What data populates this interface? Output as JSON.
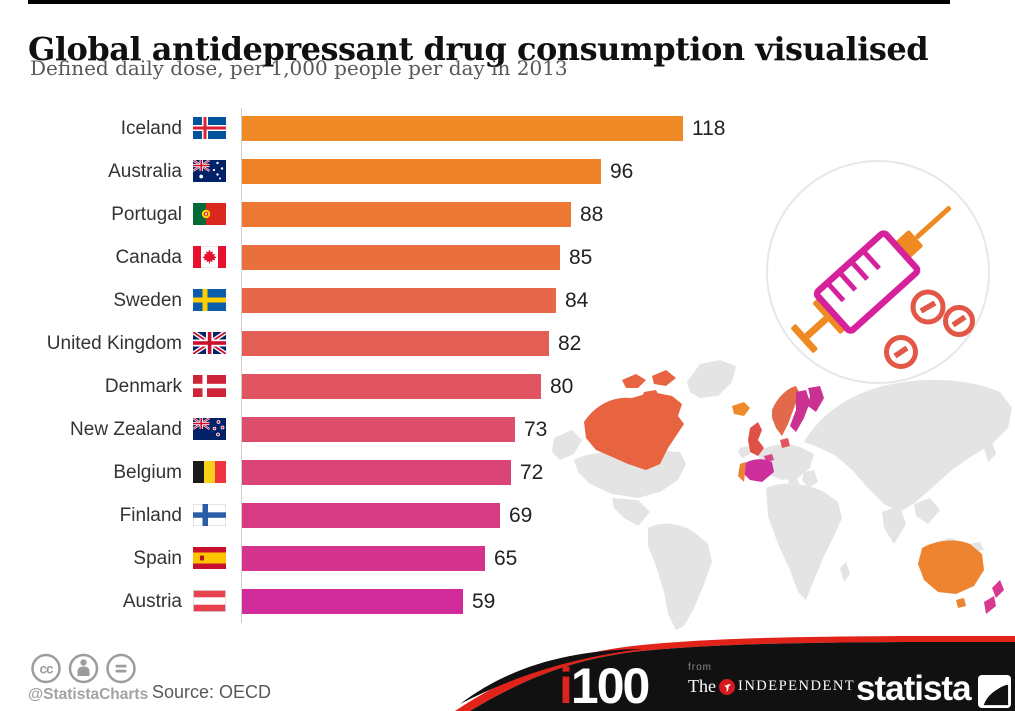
{
  "header": {
    "title": "Global antidepressant drug consumption visualised",
    "subtitle": "Defined daily dose, per 1,000 people per day in 2013"
  },
  "chart_data": {
    "type": "bar",
    "orientation": "horizontal",
    "title": "Global antidepressant drug consumption visualised",
    "subtitle": "Defined daily dose, per 1,000 people per day in 2013",
    "year": "2013",
    "unit": "defined daily dose per 1,000 people per day",
    "categories": [
      "Iceland",
      "Australia",
      "Portugal",
      "Canada",
      "Sweden",
      "United Kingdom",
      "Denmark",
      "New Zealand",
      "Belgium",
      "Finland",
      "Spain",
      "Austria"
    ],
    "values": [
      118,
      96,
      88,
      85,
      84,
      82,
      80,
      73,
      72,
      69,
      65,
      59
    ],
    "bar_colors": [
      "#F08A26",
      "#EF8229",
      "#ED7834",
      "#EA6F3F",
      "#E7674A",
      "#E35E55",
      "#E05560",
      "#DD4D6C",
      "#DA4477",
      "#D73C82",
      "#D4338E",
      "#D12B99"
    ],
    "flags": [
      "is",
      "au",
      "pt",
      "ca",
      "se",
      "gb",
      "dk",
      "nz",
      "be",
      "fi",
      "es",
      "at"
    ],
    "xlim": [
      0,
      130
    ],
    "grid": false,
    "legend": false
  },
  "map": {
    "base_color": "#E4E4E4",
    "colors": {
      "canada": "#E86340",
      "iceland": "#EE8A2A",
      "uk": "#DF5147",
      "norway": "#E26A4B",
      "sweden": "#CB3093",
      "denmark": "#E05560",
      "belgium": "#D8438A",
      "spain": "#CC2F9B",
      "portugal": "#EE7F34",
      "australia": "#EE8430",
      "new_zealand": "#D8388F"
    }
  },
  "illustration": {
    "name": "syringe-and-pills",
    "circle_border": "#E7E7E7",
    "barrel_color": "#D6219C",
    "metal_color": "#EE8A21",
    "pill_color": "#E25745"
  },
  "footer": {
    "handle": "@StatistaCharts",
    "source": "Source: OECD",
    "swoosh_black": "#111111",
    "swoosh_red": "#E2231A",
    "i100": {
      "i": "i",
      "num": "100"
    },
    "independent": {
      "from": "from",
      "the": "The",
      "name": "INDEPENDENT"
    },
    "statista": "statista"
  }
}
